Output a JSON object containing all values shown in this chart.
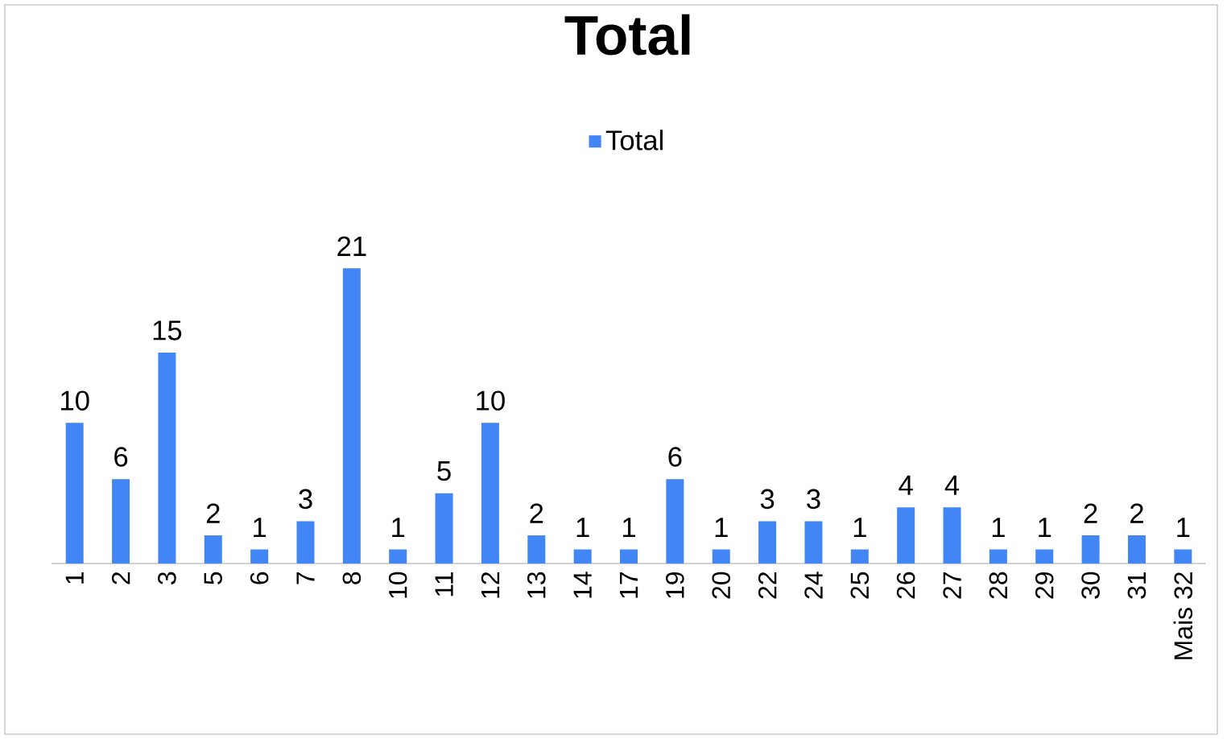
{
  "chart_data": {
    "type": "bar",
    "title": "Total",
    "categories": [
      "1",
      "2",
      "3",
      "5",
      "6",
      "7",
      "8",
      "10",
      "11",
      "12",
      "13",
      "14",
      "17",
      "19",
      "20",
      "22",
      "24",
      "25",
      "26",
      "27",
      "28",
      "29",
      "30",
      "31",
      "Mais 32"
    ],
    "series": [
      {
        "name": "Total",
        "color": "#4285f4",
        "values": [
          10,
          6,
          15,
          2,
          1,
          3,
          21,
          1,
          5,
          10,
          2,
          1,
          1,
          6,
          1,
          3,
          3,
          1,
          4,
          4,
          1,
          1,
          2,
          2,
          1
        ]
      }
    ],
    "data_labels": true,
    "legend": "top"
  }
}
